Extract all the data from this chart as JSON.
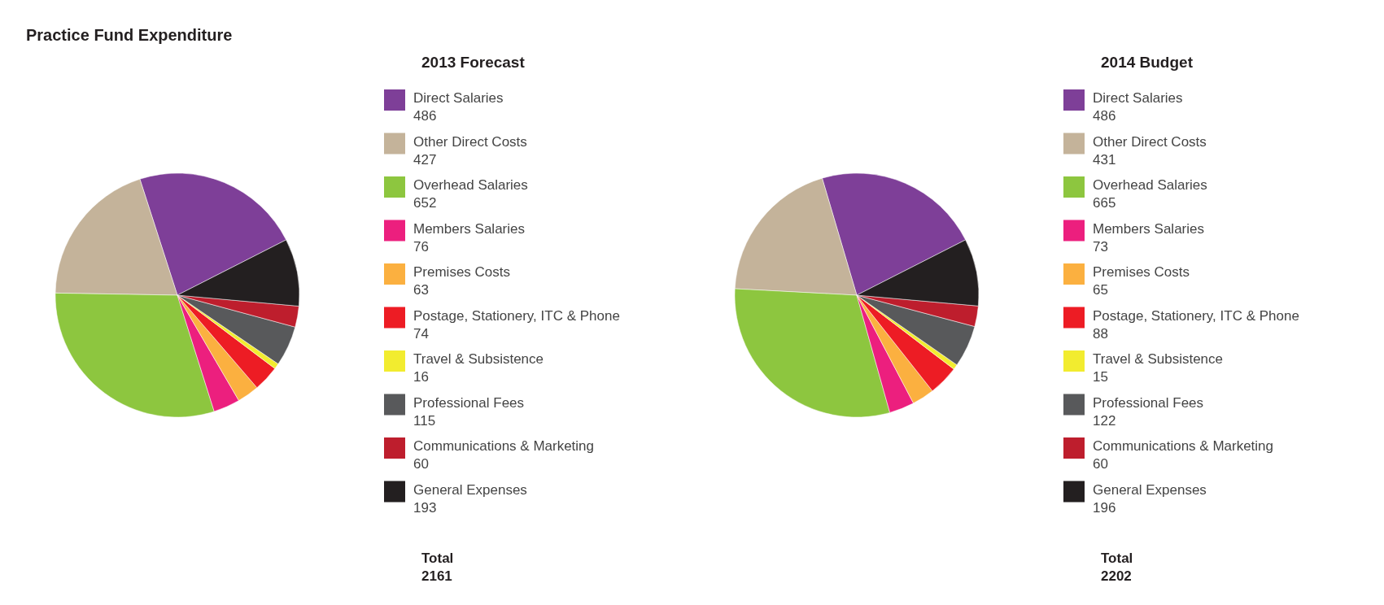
{
  "chart_data": [
    {
      "type": "pie",
      "title": "Practice Fund Expenditure",
      "subtitle": "2013 Forecast",
      "categories": [
        "Direct Salaries",
        "Other Direct Costs",
        "Overhead Salaries",
        "Members Salaries",
        "Premises Costs",
        "Postage, Stationery, ITC & Phone",
        "Travel & Subsistence",
        "Professional Fees",
        "Communications & Marketing",
        "General Expenses"
      ],
      "values": [
        486,
        427,
        652,
        76,
        63,
        74,
        16,
        115,
        60,
        193
      ],
      "colors": [
        "#7e3f98",
        "#c4b39a",
        "#8dc63f",
        "#ec1f7e",
        "#fbb040",
        "#ed1c24",
        "#f2ec2f",
        "#58595b",
        "#be1e2d",
        "#231f20"
      ],
      "data_labels": true,
      "legend": "right",
      "annotations": [
        "Total",
        "2161"
      ]
    },
    {
      "type": "pie",
      "subtitle": "2014 Budget",
      "categories": [
        "Direct Salaries",
        "Other Direct Costs",
        "Overhead Salaries",
        "Members Salaries",
        "Premises Costs",
        "Postage, Stationery, ITC & Phone",
        "Travel & Subsistence",
        "Professional Fees",
        "Communications & Marketing",
        "General Expenses"
      ],
      "values": [
        486,
        431,
        665,
        73,
        65,
        88,
        15,
        122,
        60,
        196
      ],
      "colors": [
        "#7e3f98",
        "#c4b39a",
        "#8dc63f",
        "#ec1f7e",
        "#fbb040",
        "#ed1c24",
        "#f2ec2f",
        "#58595b",
        "#be1e2d",
        "#231f20"
      ],
      "data_labels": true,
      "legend": "right",
      "annotations": [
        "Total",
        "2202"
      ]
    }
  ]
}
